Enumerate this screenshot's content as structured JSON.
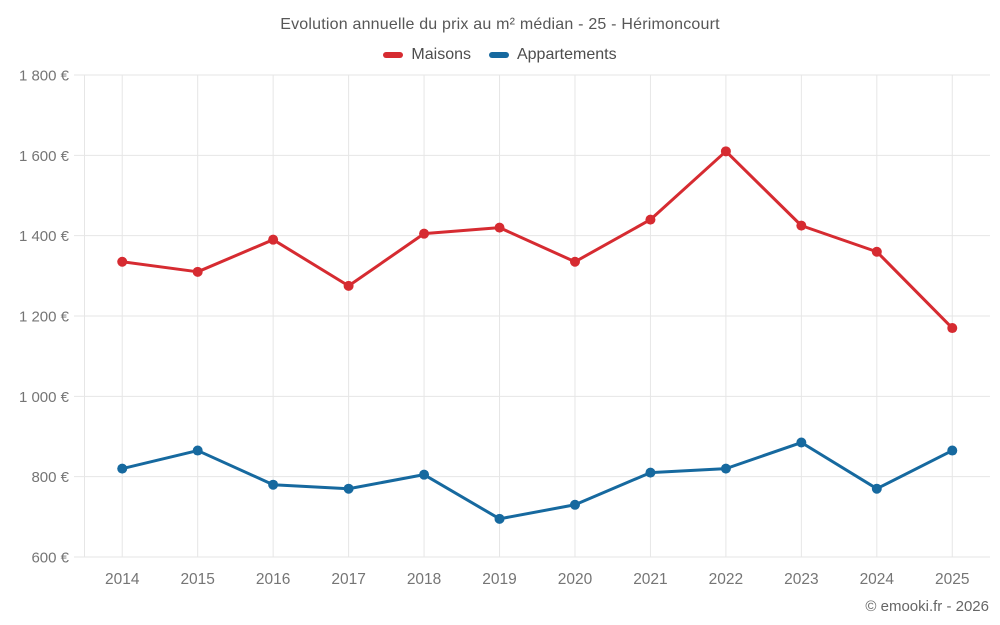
{
  "page": {
    "copyright": "© emooki.fr - 2026",
    "background": "#ffffff"
  },
  "chart_data": {
    "type": "line",
    "title": "Evolution annuelle du prix au m² médian - 25 - Hérimoncourt",
    "xlabel": "",
    "ylabel": "",
    "categories": [
      "2014",
      "2015",
      "2016",
      "2017",
      "2018",
      "2019",
      "2020",
      "2021",
      "2022",
      "2023",
      "2024",
      "2025"
    ],
    "series": [
      {
        "name": "Maisons",
        "color": "#d62b31",
        "values": [
          1335,
          1310,
          1390,
          1275,
          1405,
          1420,
          1335,
          1440,
          1610,
          1425,
          1360,
          1170
        ]
      },
      {
        "name": "Appartements",
        "color": "#16699f",
        "values": [
          820,
          865,
          780,
          770,
          805,
          695,
          730,
          810,
          820,
          885,
          770,
          865
        ]
      }
    ],
    "ylim": [
      600,
      1800
    ],
    "y_ticks": [
      {
        "value": 600,
        "label": "600 €"
      },
      {
        "value": 800,
        "label": "800 €"
      },
      {
        "value": 1000,
        "label": "1 000 €"
      },
      {
        "value": 1200,
        "label": "1 200 €"
      },
      {
        "value": 1400,
        "label": "1 400 €"
      },
      {
        "value": 1600,
        "label": "1 600 €"
      },
      {
        "value": 1800,
        "label": "1 800 €"
      }
    ],
    "grid": true,
    "legend_position": "top",
    "styles": {
      "grid_color": "#e6e6e6",
      "tick_label_color": "#757575",
      "title_color": "#575757",
      "legend_label_color": "#4d4d4d",
      "copyright_color": "#666666",
      "marker_radius": 5,
      "line_width": 3
    }
  }
}
